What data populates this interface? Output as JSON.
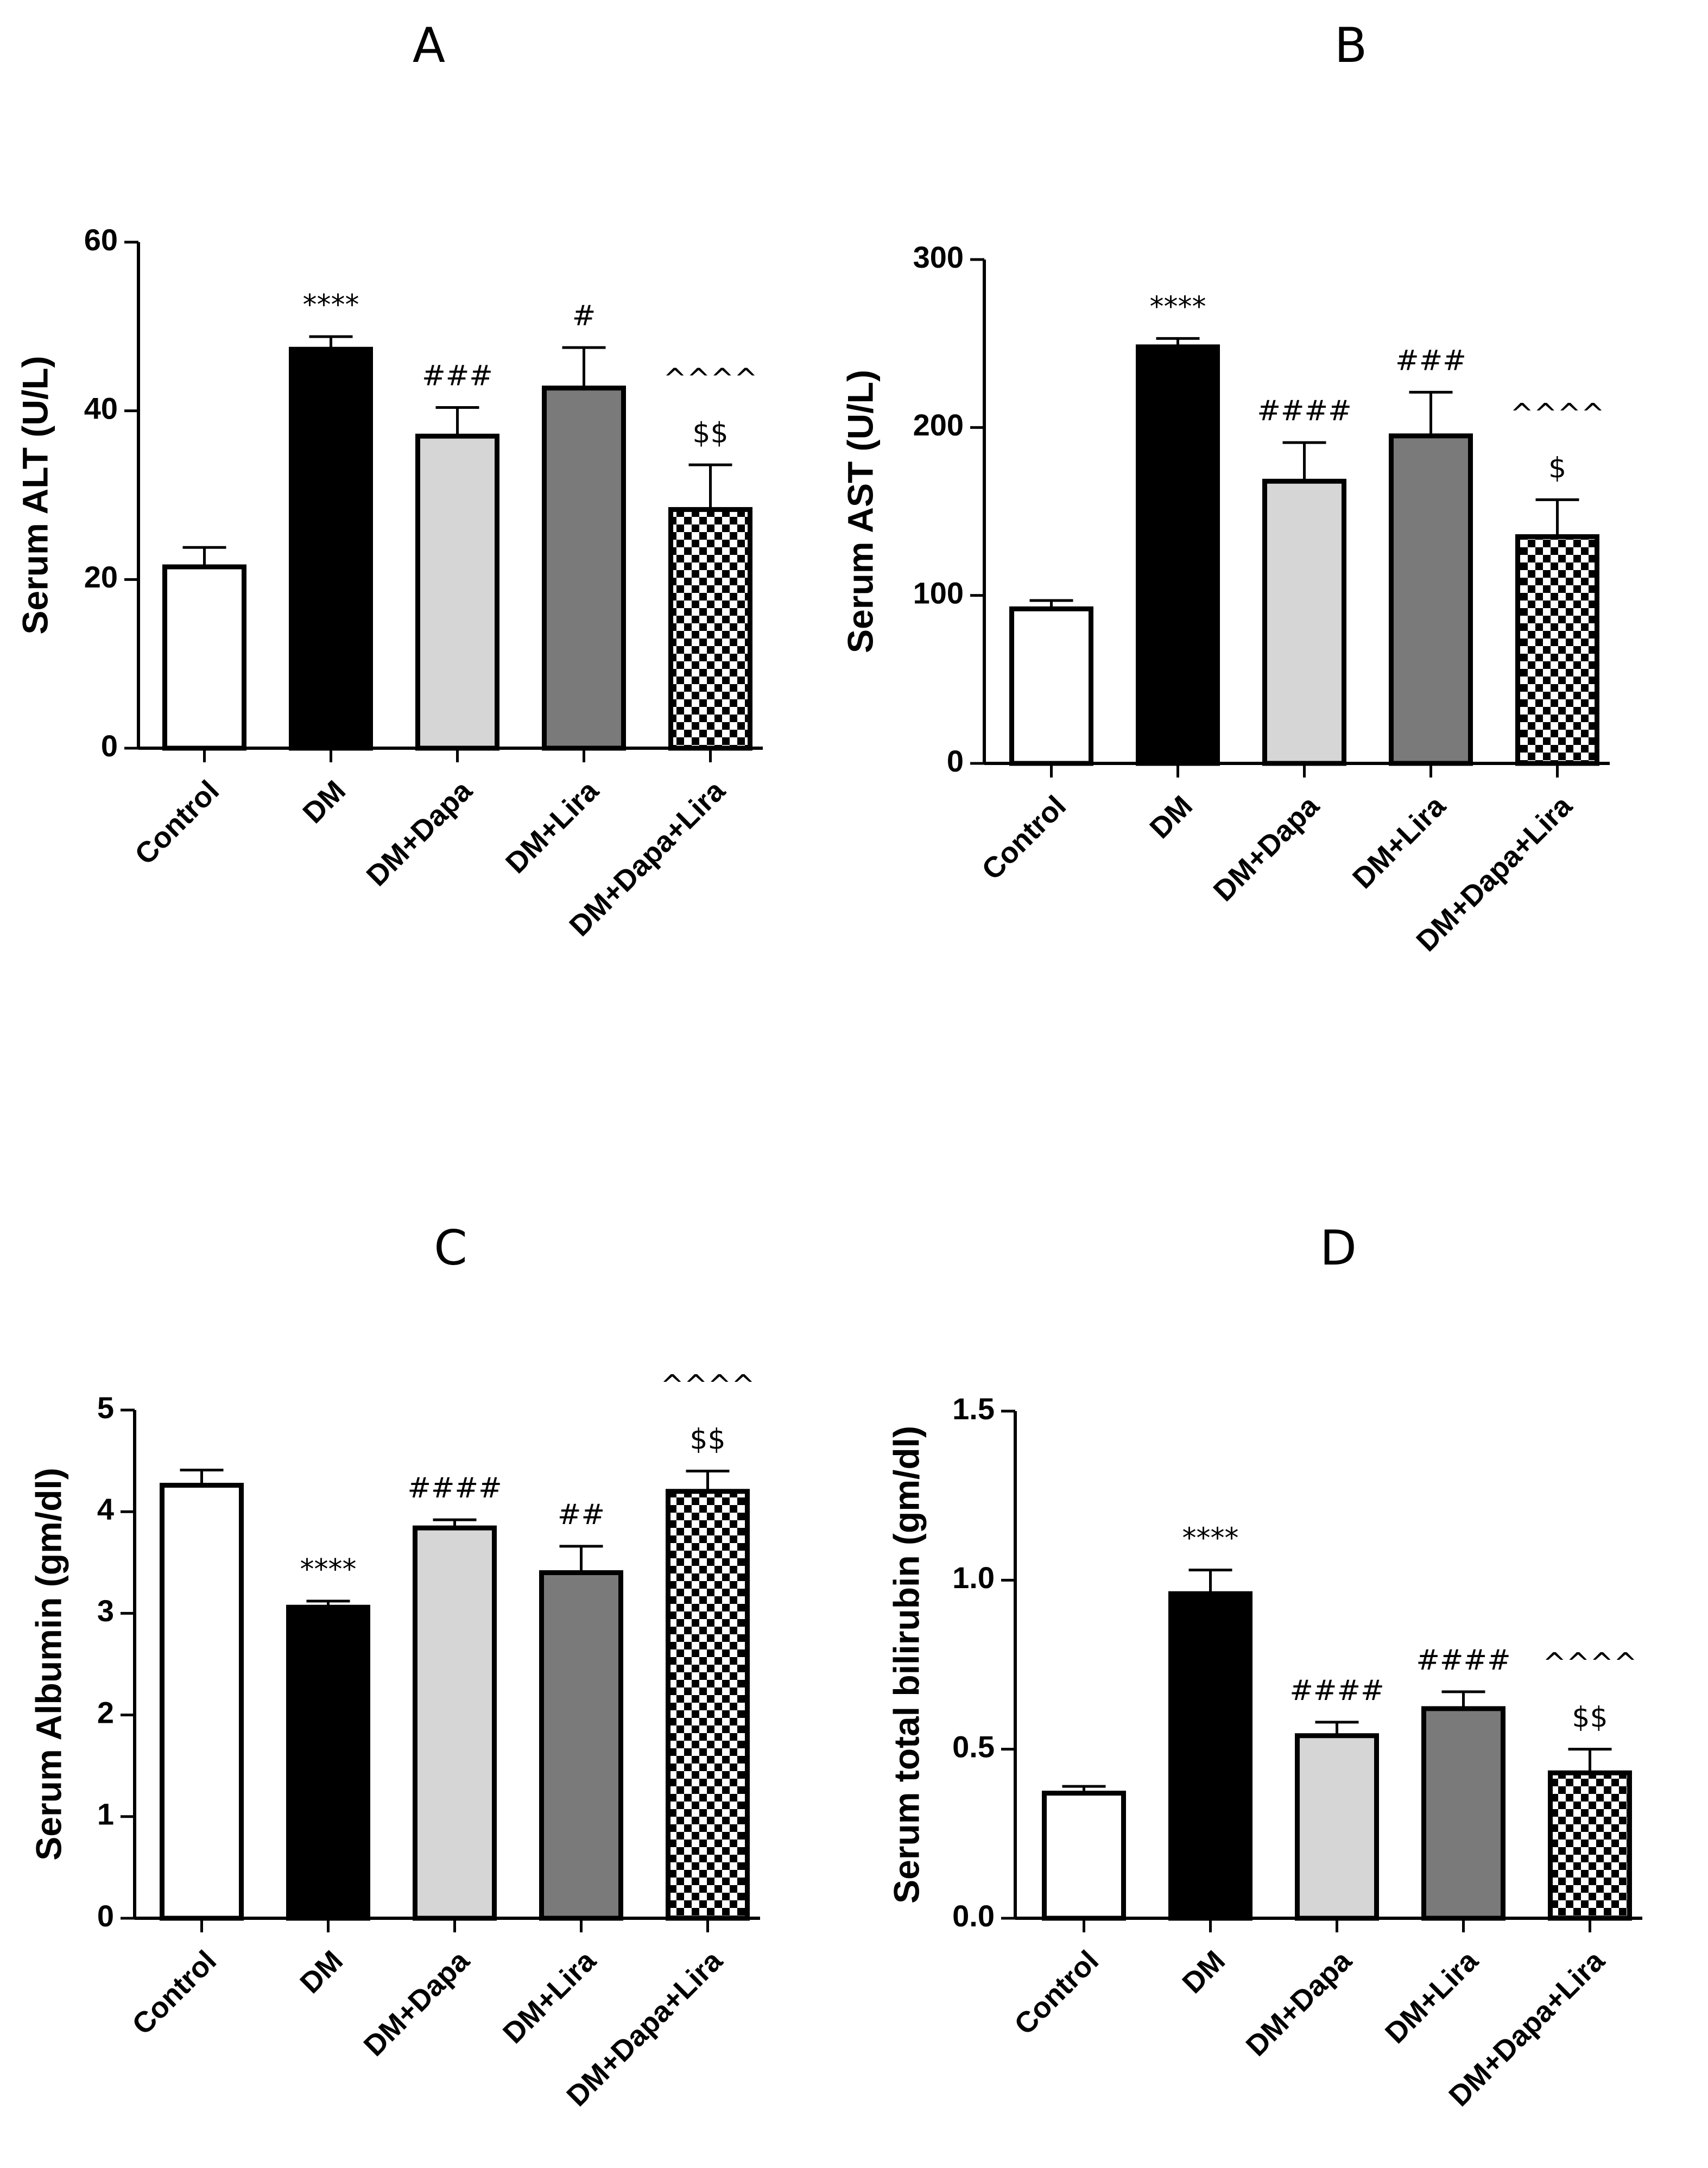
{
  "chart_data": [
    {
      "type": "bar",
      "panel": "A",
      "title": "",
      "xlabel": "",
      "ylabel": "Serum ALT (U/L)",
      "ylim": [
        0,
        60
      ],
      "yticks": [
        0,
        20,
        40,
        60
      ],
      "ytick_labels": [
        "0",
        "20",
        "40",
        "60"
      ],
      "categories": [
        "Control",
        "DM",
        "DM+Dapa",
        "DM+Lira",
        "DM+Dapa+Lira"
      ],
      "values": [
        21.5,
        47.3,
        37,
        42.7,
        28.3
      ],
      "errors": [
        2.3,
        1.5,
        3.4,
        4.8,
        5.3
      ],
      "fills": [
        "white",
        "black",
        "lightgray",
        "gray",
        "checker"
      ],
      "annotations": [
        [],
        [
          "****"
        ],
        [
          "###"
        ],
        [
          "#"
        ],
        [
          "^^^^",
          "$$"
        ]
      ]
    },
    {
      "type": "bar",
      "panel": "B",
      "title": "",
      "xlabel": "",
      "ylabel": "Serum AST (U/L)",
      "ylim": [
        0,
        300
      ],
      "yticks": [
        0,
        100,
        200,
        300
      ],
      "ytick_labels": [
        "0",
        "100",
        "200",
        "300"
      ],
      "categories": [
        "Control",
        "DM",
        "DM+Dapa",
        "DM+Lira",
        "DM+Dapa+Lira"
      ],
      "values": [
        92,
        248,
        168,
        195,
        135
      ],
      "errors": [
        5,
        5,
        23,
        26,
        22
      ],
      "fills": [
        "white",
        "black",
        "lightgray",
        "gray",
        "checker"
      ],
      "annotations": [
        [],
        [
          "****"
        ],
        [
          "####"
        ],
        [
          "###"
        ],
        [
          "^^^^",
          "$"
        ]
      ]
    },
    {
      "type": "bar",
      "panel": "C",
      "title": "",
      "xlabel": "",
      "ylabel": "Serum Albumin (gm/dl)",
      "ylim": [
        0,
        5
      ],
      "yticks": [
        0,
        1,
        2,
        3,
        4,
        5
      ],
      "ytick_labels": [
        "0",
        "1",
        "2",
        "3",
        "4",
        "5"
      ],
      "categories": [
        "Control",
        "DM",
        "DM+Dapa",
        "DM+Lira",
        "DM+Dapa+Lira"
      ],
      "values": [
        4.26,
        3.06,
        3.84,
        3.4,
        4.2
      ],
      "errors": [
        0.15,
        0.06,
        0.08,
        0.26,
        0.2
      ],
      "fills": [
        "white",
        "black",
        "lightgray",
        "gray",
        "checker"
      ],
      "annotations": [
        [],
        [
          "****"
        ],
        [
          "####"
        ],
        [
          "##"
        ],
        [
          "^^^^",
          "$$"
        ]
      ]
    },
    {
      "type": "bar",
      "panel": "D",
      "title": "",
      "xlabel": "",
      "ylabel": "Serum total bilirubin (gm/dl)",
      "ylim": [
        0,
        1.5
      ],
      "yticks": [
        0,
        0.5,
        1.0,
        1.5
      ],
      "ytick_labels": [
        "0.0",
        "0.5",
        "1.0",
        "1.5"
      ],
      "categories": [
        "Control",
        "DM",
        "DM+Dapa",
        "DM+Lira",
        "DM+Dapa+Lira"
      ],
      "values": [
        0.37,
        0.96,
        0.54,
        0.62,
        0.43
      ],
      "errors": [
        0.02,
        0.07,
        0.04,
        0.05,
        0.07
      ],
      "fills": [
        "white",
        "black",
        "lightgray",
        "gray",
        "checker"
      ],
      "annotations": [
        [],
        [
          "****"
        ],
        [
          "####"
        ],
        [
          "####"
        ],
        [
          "^^^^",
          "$$"
        ]
      ]
    }
  ],
  "colors": {
    "white": "#ffffff",
    "black": "#000000",
    "lightgray": "#d6d6d6",
    "gray": "#7a7a7a",
    "stroke": "#000000"
  }
}
